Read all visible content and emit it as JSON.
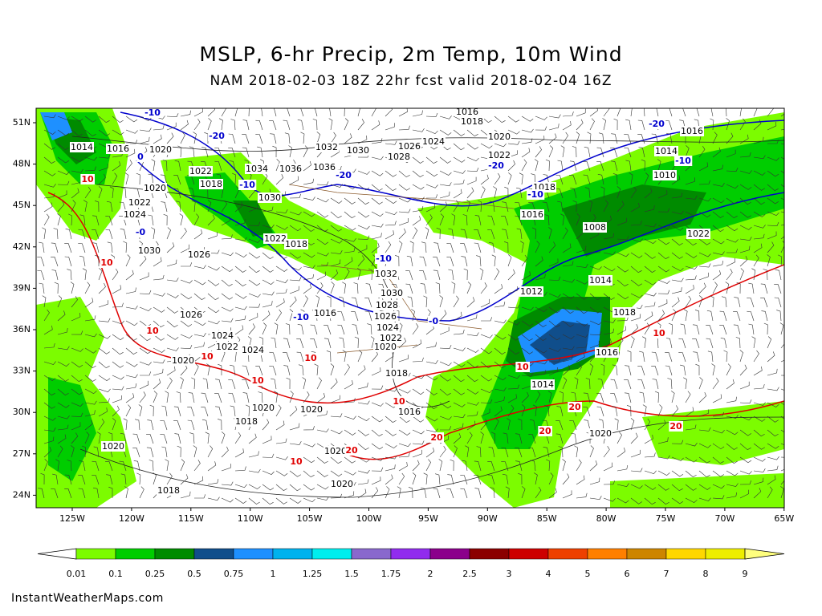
{
  "header": {
    "title": "MSLP, 6-hr Precip, 2m Temp, 10m Wind",
    "subtitle": "NAM 2018-02-03 18Z 22hr fcst valid 2018-02-04 16Z"
  },
  "map": {
    "latitude_labels": [
      "51N",
      "48N",
      "45N",
      "42N",
      "39N",
      "36N",
      "33N",
      "30N",
      "27N",
      "24N"
    ],
    "longitude_labels": [
      "125W",
      "120W",
      "115W",
      "110W",
      "105W",
      "100W",
      "95W",
      "90W",
      "85W",
      "80W",
      "75W",
      "70W",
      "65W"
    ],
    "pressure_labels": [
      "1014",
      "1016",
      "1020",
      "1022",
      "1018",
      "1034",
      "1036",
      "1036",
      "1032",
      "1030",
      "1028",
      "1026",
      "1024",
      "1016",
      "1018",
      "1020",
      "1022",
      "1018",
      "1016",
      "1016",
      "1014",
      "1010",
      "1008",
      "1022",
      "1014",
      "1012",
      "1018",
      "1016",
      "1014",
      "1020",
      "1032",
      "1030",
      "1028",
      "1026",
      "1024",
      "1022",
      "1020",
      "1018",
      "1016",
      "1030",
      "1020",
      "1022",
      "1024",
      "1022",
      "1018",
      "1026",
      "1030",
      "1016",
      "1026",
      "1024",
      "1022",
      "1024",
      "1020",
      "1020",
      "1020",
      "1018",
      "1020",
      "1020",
      "1020",
      "1018"
    ],
    "cold_temperature_labels": [
      "-10",
      "-20",
      "0",
      "-10",
      "-20",
      "-10",
      "-0",
      "-20",
      "-10",
      "-20",
      "-10",
      "-0",
      "-10"
    ],
    "warm_temperature_labels": [
      "10",
      "10",
      "10",
      "10",
      "10",
      "10",
      "10",
      "10",
      "10",
      "20",
      "20",
      "20",
      "20",
      "20",
      "10"
    ]
  },
  "colorbar": {
    "labels": [
      "0.01",
      "0.1",
      "0.25",
      "0.5",
      "0.75",
      "1",
      "1.25",
      "1.5",
      "1.75",
      "2",
      "2.5",
      "3",
      "4",
      "5",
      "6",
      "7",
      "8",
      "9"
    ],
    "colors": [
      "#ffffff",
      "#7cfc00",
      "#00cd00",
      "#008b00",
      "#104e8b",
      "#1e90ff",
      "#00b2ee",
      "#00eeee",
      "#8968cd",
      "#912cee",
      "#8b008b",
      "#8b0000",
      "#cd0000",
      "#ee4000",
      "#ff7f00",
      "#cd8500",
      "#ffd700",
      "#eeee00",
      "#ffff7e"
    ]
  },
  "footer": {
    "credit": "InstantWeatherMaps.com"
  }
}
